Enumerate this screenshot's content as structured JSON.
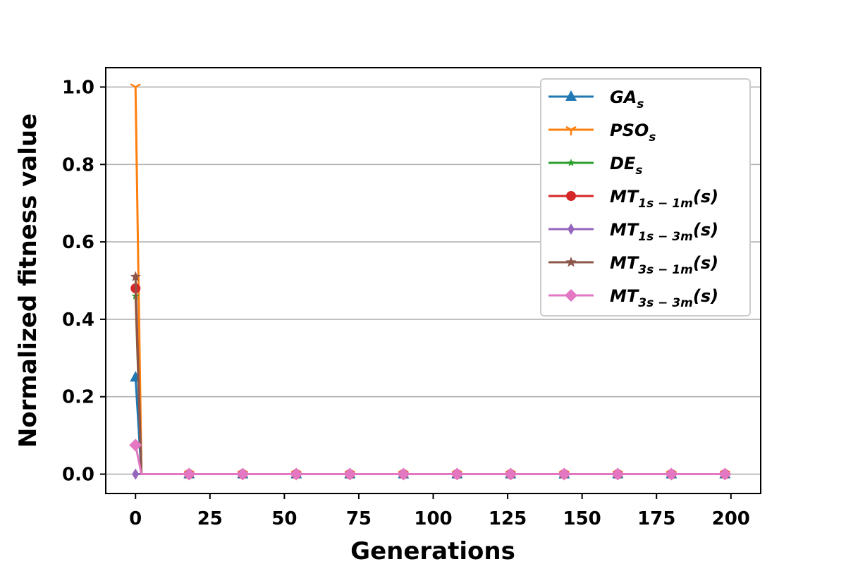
{
  "chart_data": {
    "type": "line",
    "title": "",
    "xlabel": "Generations",
    "ylabel": "Normalized fitness value",
    "xlim": [
      -10,
      210
    ],
    "ylim": [
      -0.05,
      1.05
    ],
    "xticks": [
      0,
      25,
      50,
      75,
      100,
      125,
      150,
      175,
      200
    ],
    "yticks": [
      0.0,
      0.2,
      0.4,
      0.6,
      0.8,
      1.0
    ],
    "xtick_labels": [
      "0",
      "25",
      "50",
      "75",
      "100",
      "125",
      "150",
      "175",
      "200"
    ],
    "ytick_labels": [
      "0.0",
      "0.2",
      "0.4",
      "0.6",
      "0.8",
      "1.0"
    ],
    "grid": "horizontal",
    "legend_position": "top-right",
    "x": [
      0,
      2,
      18,
      36,
      54,
      72,
      90,
      108,
      126,
      144,
      162,
      180,
      198
    ],
    "marker_x": [
      0,
      18,
      36,
      54,
      72,
      90,
      108,
      126,
      144,
      162,
      180,
      198
    ],
    "series": [
      {
        "name": "GA_s",
        "base": "GA",
        "sub": "s",
        "suffix": "",
        "color": "#1f77b4",
        "marker": "triangle",
        "values": [
          0.25,
          0,
          0,
          0,
          0,
          0,
          0,
          0,
          0,
          0,
          0,
          0,
          0
        ]
      },
      {
        "name": "PSO_s",
        "base": "PSO",
        "sub": "s",
        "suffix": "",
        "color": "#ff7f0e",
        "marker": "tri-down",
        "values": [
          1.0,
          0,
          0,
          0,
          0,
          0,
          0,
          0,
          0,
          0,
          0,
          0,
          0
        ]
      },
      {
        "name": "DE_s",
        "base": "DE",
        "sub": "s",
        "suffix": "",
        "color": "#2ca02c",
        "marker": "star-small",
        "values": [
          0.46,
          0,
          0,
          0,
          0,
          0,
          0,
          0,
          0,
          0,
          0,
          0,
          0
        ]
      },
      {
        "name": "MT_{1s-1m}(s)",
        "base": "MT",
        "sub": "1s − 1m",
        "suffix": "(s)",
        "color": "#d62728",
        "marker": "circle",
        "values": [
          0.48,
          0,
          0,
          0,
          0,
          0,
          0,
          0,
          0,
          0,
          0,
          0,
          0
        ]
      },
      {
        "name": "MT_{1s-3m}(s)",
        "base": "MT",
        "sub": "1s − 3m",
        "suffix": "(s)",
        "color": "#9467bd",
        "marker": "thin-diamond",
        "values": [
          0.0,
          0,
          0,
          0,
          0,
          0,
          0,
          0,
          0,
          0,
          0,
          0,
          0
        ]
      },
      {
        "name": "MT_{3s-1m}(s)",
        "base": "MT",
        "sub": "3s − 1m",
        "suffix": "(s)",
        "color": "#8c564b",
        "marker": "star",
        "values": [
          0.51,
          0,
          0,
          0,
          0,
          0,
          0,
          0,
          0,
          0,
          0,
          0,
          0
        ]
      },
      {
        "name": "MT_{3s-3m}(s)",
        "base": "MT",
        "sub": "3s − 3m",
        "suffix": "(s)",
        "color": "#e377c2",
        "marker": "diamond",
        "values": [
          0.075,
          0,
          0,
          0,
          0,
          0,
          0,
          0,
          0,
          0,
          0,
          0,
          0
        ]
      }
    ]
  }
}
